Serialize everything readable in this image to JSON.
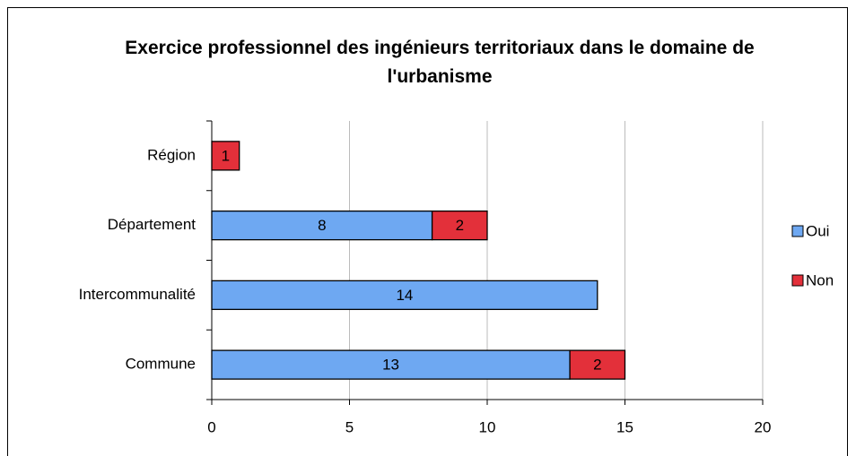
{
  "chart_data": {
    "type": "stacked-barh",
    "title": "Exercice professionnel des ingénieurs territoriaux dans le domaine de l'urbanisme",
    "categories": [
      "Région",
      "Département",
      "Intercommunalité",
      "Commune"
    ],
    "series": [
      {
        "name": "Oui",
        "color": "#6ea8f2",
        "values": [
          null,
          8,
          14,
          13
        ]
      },
      {
        "name": "Non",
        "color": "#e3303a",
        "values": [
          1,
          2,
          null,
          2
        ]
      }
    ],
    "xlim": [
      0,
      20
    ],
    "xticks": [
      0,
      5,
      10,
      15,
      20
    ],
    "grid": true,
    "legend": "right"
  }
}
